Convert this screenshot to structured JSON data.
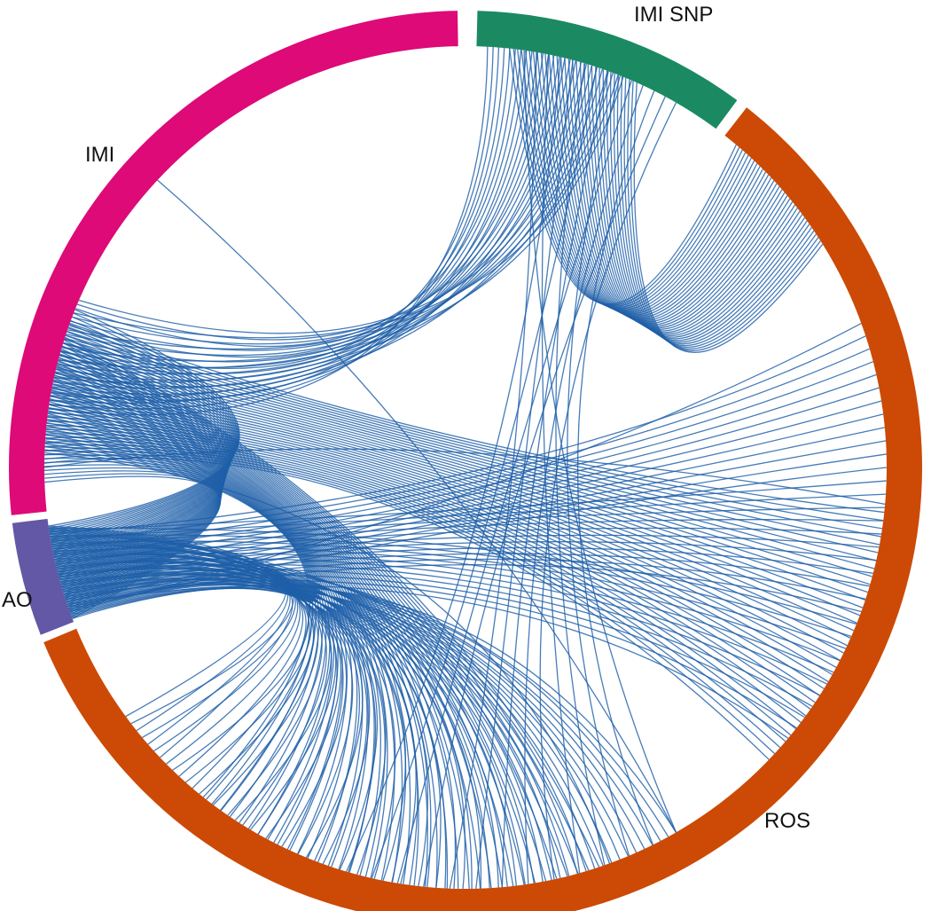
{
  "diagram": {
    "type": "chord",
    "link_color": "#1f5fa8",
    "segments": [
      {
        "id": "imi-snp",
        "label": "IMI SNP",
        "color": "#1b8a62"
      },
      {
        "id": "ros",
        "label": "ROS",
        "color": "#cc4a05"
      },
      {
        "id": "ao",
        "label": "AO",
        "color": "#6358a6"
      },
      {
        "id": "imi",
        "label": "IMI",
        "color": "#dd0a78"
      }
    ],
    "link_groups": [
      {
        "from": "imi-snp",
        "to": "ros"
      },
      {
        "from": "imi-snp",
        "to": "imi"
      },
      {
        "from": "ros",
        "to": "ros"
      },
      {
        "from": "imi",
        "to": "ao"
      },
      {
        "from": "imi",
        "to": "ros"
      },
      {
        "from": "ao",
        "to": "ros"
      }
    ]
  }
}
